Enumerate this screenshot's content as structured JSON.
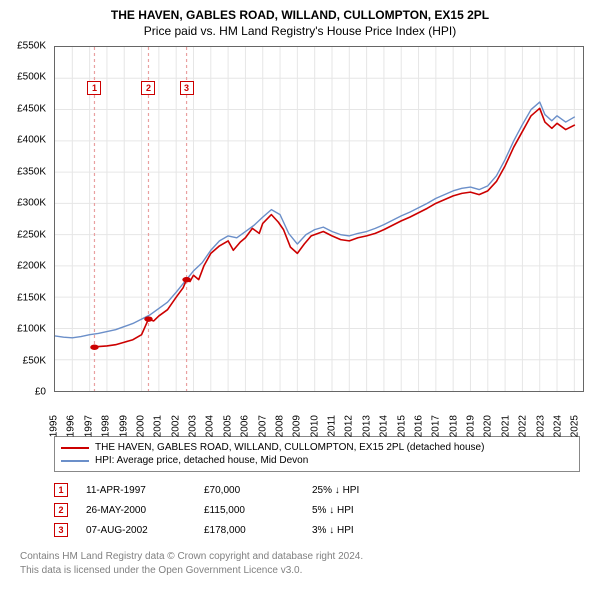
{
  "chart": {
    "title_line1": "THE HAVEN, GABLES ROAD, WILLAND, CULLOMPTON, EX15 2PL",
    "title_line2": "Price paid vs. HM Land Registry's House Price Index (HPI)",
    "background_color": "#ffffff",
    "border_color": "#666666",
    "grid_color": "#e6e6e6",
    "title_fontsize": 12,
    "yaxis": {
      "min": 0,
      "max": 550,
      "ticks": [
        0,
        50,
        100,
        150,
        200,
        250,
        300,
        350,
        400,
        450,
        500,
        550
      ],
      "tick_labels": [
        "£0",
        "£50K",
        "£100K",
        "£150K",
        "£200K",
        "£250K",
        "£300K",
        "£350K",
        "£400K",
        "£450K",
        "£500K",
        "£550K"
      ],
      "label_fontsize": 10
    },
    "xaxis": {
      "min": 1995,
      "max": 2025.5,
      "ticks": [
        1995,
        1996,
        1997,
        1998,
        1999,
        2000,
        2001,
        2002,
        2003,
        2004,
        2005,
        2006,
        2007,
        2008,
        2009,
        2010,
        2011,
        2012,
        2013,
        2014,
        2015,
        2016,
        2017,
        2018,
        2019,
        2020,
        2021,
        2022,
        2023,
        2024,
        2025
      ],
      "tick_labels": [
        "1995",
        "1996",
        "1997",
        "1998",
        "1999",
        "2000",
        "2001",
        "2002",
        "2003",
        "2004",
        "2005",
        "2006",
        "2007",
        "2008",
        "2009",
        "2010",
        "2011",
        "2012",
        "2013",
        "2014",
        "2015",
        "2016",
        "2017",
        "2018",
        "2019",
        "2020",
        "2021",
        "2022",
        "2023",
        "2024",
        "2025"
      ],
      "label_fontsize": 10
    },
    "series": [
      {
        "name": "THE HAVEN, GABLES ROAD, WILLAND, CULLOMPTON, EX15 2PL (detached house)",
        "color": "#cc0000",
        "line_width": 1.6,
        "points": [
          [
            1997.28,
            70
          ],
          [
            1997.5,
            71
          ],
          [
            1998,
            72
          ],
          [
            1998.5,
            74
          ],
          [
            1999,
            78
          ],
          [
            1999.5,
            82
          ],
          [
            2000,
            90
          ],
          [
            2000.4,
            115
          ],
          [
            2000.7,
            112
          ],
          [
            2001,
            120
          ],
          [
            2001.5,
            130
          ],
          [
            2002,
            150
          ],
          [
            2002.4,
            165
          ],
          [
            2002.6,
            178
          ],
          [
            2002.8,
            175
          ],
          [
            2003,
            185
          ],
          [
            2003.3,
            178
          ],
          [
            2003.6,
            200
          ],
          [
            2004,
            220
          ],
          [
            2004.5,
            232
          ],
          [
            2005,
            240
          ],
          [
            2005.3,
            225
          ],
          [
            2005.7,
            238
          ],
          [
            2006,
            245
          ],
          [
            2006.4,
            260
          ],
          [
            2006.8,
            252
          ],
          [
            2007,
            268
          ],
          [
            2007.5,
            282
          ],
          [
            2007.9,
            270
          ],
          [
            2008.2,
            258
          ],
          [
            2008.6,
            230
          ],
          [
            2009,
            220
          ],
          [
            2009.4,
            235
          ],
          [
            2009.8,
            248
          ],
          [
            2010,
            250
          ],
          [
            2010.5,
            255
          ],
          [
            2011,
            248
          ],
          [
            2011.5,
            242
          ],
          [
            2012,
            240
          ],
          [
            2012.5,
            245
          ],
          [
            2013,
            248
          ],
          [
            2013.5,
            252
          ],
          [
            2014,
            258
          ],
          [
            2014.5,
            265
          ],
          [
            2015,
            272
          ],
          [
            2015.5,
            278
          ],
          [
            2016,
            285
          ],
          [
            2016.5,
            292
          ],
          [
            2017,
            300
          ],
          [
            2017.5,
            306
          ],
          [
            2018,
            312
          ],
          [
            2018.5,
            316
          ],
          [
            2019,
            318
          ],
          [
            2019.5,
            314
          ],
          [
            2020,
            320
          ],
          [
            2020.5,
            335
          ],
          [
            2021,
            360
          ],
          [
            2021.5,
            390
          ],
          [
            2022,
            415
          ],
          [
            2022.5,
            440
          ],
          [
            2023,
            452
          ],
          [
            2023.3,
            430
          ],
          [
            2023.7,
            420
          ],
          [
            2024,
            428
          ],
          [
            2024.5,
            418
          ],
          [
            2025,
            425
          ]
        ]
      },
      {
        "name": "HPI: Average price, detached house, Mid Devon",
        "color": "#6b8fc9",
        "line_width": 1.4,
        "points": [
          [
            1995,
            88
          ],
          [
            1995.5,
            86
          ],
          [
            1996,
            85
          ],
          [
            1996.5,
            87
          ],
          [
            1997,
            90
          ],
          [
            1997.5,
            92
          ],
          [
            1998,
            95
          ],
          [
            1998.5,
            98
          ],
          [
            1999,
            103
          ],
          [
            1999.5,
            108
          ],
          [
            2000,
            115
          ],
          [
            2000.5,
            122
          ],
          [
            2001,
            132
          ],
          [
            2001.5,
            142
          ],
          [
            2002,
            158
          ],
          [
            2002.5,
            175
          ],
          [
            2003,
            192
          ],
          [
            2003.5,
            205
          ],
          [
            2004,
            225
          ],
          [
            2004.5,
            240
          ],
          [
            2005,
            248
          ],
          [
            2005.5,
            245
          ],
          [
            2006,
            255
          ],
          [
            2006.5,
            265
          ],
          [
            2007,
            278
          ],
          [
            2007.5,
            290
          ],
          [
            2008,
            282
          ],
          [
            2008.5,
            252
          ],
          [
            2009,
            235
          ],
          [
            2009.5,
            250
          ],
          [
            2010,
            258
          ],
          [
            2010.5,
            262
          ],
          [
            2011,
            255
          ],
          [
            2011.5,
            250
          ],
          [
            2012,
            248
          ],
          [
            2012.5,
            252
          ],
          [
            2013,
            255
          ],
          [
            2013.5,
            260
          ],
          [
            2014,
            266
          ],
          [
            2014.5,
            273
          ],
          [
            2015,
            280
          ],
          [
            2015.5,
            286
          ],
          [
            2016,
            293
          ],
          [
            2016.5,
            300
          ],
          [
            2017,
            308
          ],
          [
            2017.5,
            314
          ],
          [
            2018,
            320
          ],
          [
            2018.5,
            324
          ],
          [
            2019,
            326
          ],
          [
            2019.5,
            322
          ],
          [
            2020,
            328
          ],
          [
            2020.5,
            344
          ],
          [
            2021,
            370
          ],
          [
            2021.5,
            400
          ],
          [
            2022,
            426
          ],
          [
            2022.5,
            450
          ],
          [
            2023,
            462
          ],
          [
            2023.3,
            442
          ],
          [
            2023.7,
            432
          ],
          [
            2024,
            440
          ],
          [
            2024.5,
            430
          ],
          [
            2025,
            438
          ]
        ]
      }
    ],
    "sale_markers": {
      "color": "#cc0000",
      "radius": 4,
      "points": [
        {
          "n": "1",
          "x": 1997.28,
          "y": 70
        },
        {
          "n": "2",
          "x": 2000.4,
          "y": 115
        },
        {
          "n": "3",
          "x": 2002.6,
          "y": 178
        }
      ],
      "vline_color": "#e9a0a0",
      "vline_dash": "3,3",
      "box_y": 485
    }
  },
  "legend": {
    "items": [
      {
        "color": "#cc0000",
        "label": "THE HAVEN, GABLES ROAD, WILLAND, CULLOMPTON, EX15 2PL (detached house)"
      },
      {
        "color": "#6b8fc9",
        "label": "HPI: Average price, detached house, Mid Devon"
      }
    ]
  },
  "events": [
    {
      "n": "1",
      "date": "11-APR-1997",
      "price": "£70,000",
      "delta": "25% ↓ HPI"
    },
    {
      "n": "2",
      "date": "26-MAY-2000",
      "price": "£115,000",
      "delta": "5% ↓ HPI"
    },
    {
      "n": "3",
      "date": "07-AUG-2002",
      "price": "£178,000",
      "delta": "3% ↓ HPI"
    }
  ],
  "footer": {
    "line1": "Contains HM Land Registry data © Crown copyright and database right 2024.",
    "line2": "This data is licensed under the Open Government Licence v3.0."
  }
}
